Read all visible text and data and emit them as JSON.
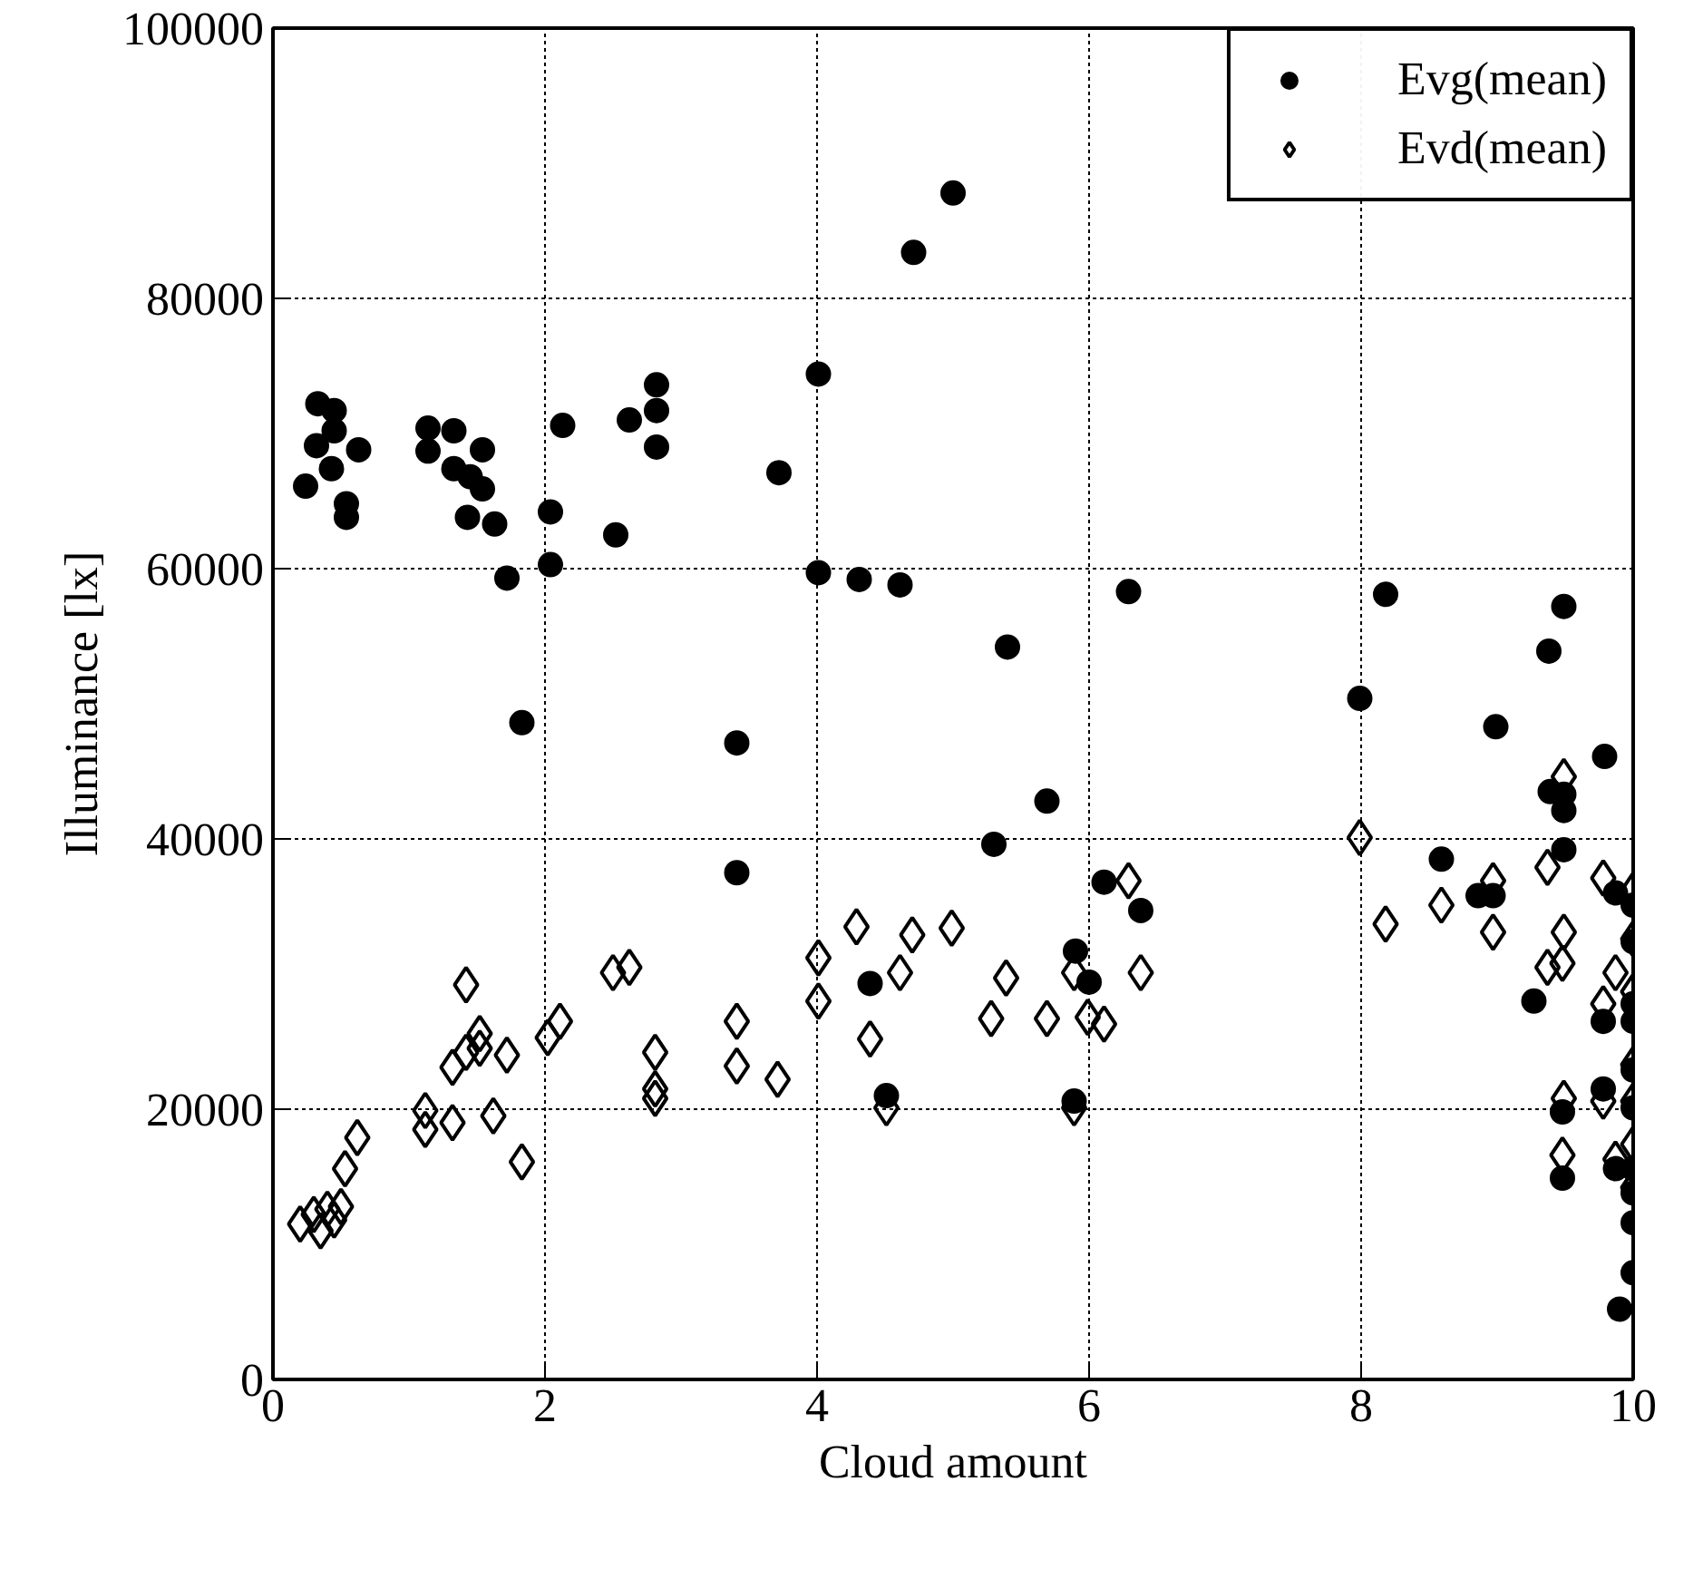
{
  "chart_data": {
    "type": "scatter",
    "xlabel": "Cloud amount",
    "ylabel": "Illuminance [lx]",
    "xlim": [
      0,
      10
    ],
    "ylim": [
      0,
      100000
    ],
    "xticks": [
      0,
      2,
      4,
      6,
      8,
      10
    ],
    "yticks": [
      0,
      20000,
      40000,
      60000,
      80000,
      100000
    ],
    "grid": true,
    "legend": "top right",
    "series": [
      {
        "name": "Evg(mean)",
        "color": "#000000",
        "marker": "circle",
        "x": [
          0.33,
          0.45,
          0.45,
          0.32,
          0.63,
          0.43,
          0.24,
          0.54,
          0.54,
          1.14,
          1.14,
          1.33,
          1.54,
          1.33,
          1.45,
          1.54,
          1.43,
          1.63,
          1.72,
          2.04,
          2.04,
          2.13,
          1.83,
          2.52,
          2.62,
          2.82,
          2.82,
          2.82,
          3.72,
          4.01,
          4.01,
          4.31,
          4.61,
          3.41,
          3.41,
          5.0,
          4.71,
          6.29,
          8.18,
          5.4,
          9.49,
          9.38,
          7.99,
          8.99,
          9.79,
          5.69,
          5.3,
          9.39,
          9.49,
          9.49,
          9.49,
          8.59,
          6.11,
          6.38,
          5.9,
          8.86,
          8.97,
          6.0,
          5.89,
          4.51,
          4.39,
          9.27,
          9.48,
          9.48,
          9.78,
          9.78,
          9.87,
          9.87,
          10,
          10,
          10,
          10,
          10,
          10,
          10,
          10,
          10,
          10,
          9.9
        ],
        "values": [
          72200,
          71700,
          70200,
          69100,
          68800,
          67400,
          66100,
          64800,
          63800,
          70400,
          68700,
          70200,
          68800,
          67400,
          66800,
          65900,
          63800,
          63300,
          59300,
          64200,
          60300,
          70600,
          48600,
          62500,
          71000,
          73600,
          71700,
          69000,
          67100,
          74400,
          59700,
          59200,
          58800,
          47100,
          37500,
          87800,
          83400,
          58300,
          58100,
          54200,
          57200,
          53900,
          50400,
          48300,
          46100,
          42800,
          39600,
          43500,
          43300,
          42100,
          39200,
          38500,
          36800,
          34700,
          31700,
          35800,
          35800,
          29400,
          20600,
          21000,
          29300,
          28000,
          19800,
          14900,
          26500,
          21500,
          15600,
          36000,
          35100,
          32400,
          27800,
          26500,
          22900,
          20100,
          15600,
          13800,
          11600,
          7900,
          5200
        ]
      },
      {
        "name": "Evd(mean)",
        "color": "#000000",
        "marker": "diamond",
        "x": [
          0.2,
          0.3,
          0.35,
          0.4,
          0.45,
          0.5,
          0.53,
          0.62,
          1.12,
          1.12,
          1.32,
          1.62,
          1.83,
          1.32,
          1.42,
          1.42,
          1.52,
          1.52,
          1.72,
          2.02,
          2.11,
          2.5,
          2.62,
          2.81,
          2.81,
          2.81,
          3.41,
          3.41,
          3.71,
          4.01,
          4.01,
          4.29,
          4.39,
          4.51,
          4.7,
          4.61,
          4.99,
          5.39,
          5.28,
          5.69,
          5.89,
          5.99,
          6.11,
          6.29,
          6.38,
          5.89,
          7.99,
          8.18,
          8.59,
          8.97,
          8.97,
          9.37,
          9.49,
          9.49,
          9.37,
          9.48,
          9.49,
          9.48,
          9.78,
          9.78,
          9.78,
          9.87,
          9.87,
          10,
          10,
          10,
          10,
          10,
          10,
          10
        ],
        "values": [
          11500,
          12200,
          11000,
          12600,
          11800,
          12800,
          15600,
          17900,
          19900,
          18500,
          19000,
          19500,
          16100,
          23100,
          29200,
          24200,
          25600,
          24500,
          24000,
          25300,
          26500,
          30100,
          30500,
          24200,
          21500,
          20800,
          26500,
          23200,
          22200,
          31200,
          28000,
          33500,
          25200,
          20100,
          32900,
          30100,
          33400,
          29700,
          26700,
          26700,
          30100,
          26800,
          26300,
          36900,
          30100,
          20100,
          40100,
          33700,
          35100,
          36900,
          33100,
          37900,
          44600,
          33100,
          30500,
          30800,
          20800,
          16600,
          37100,
          27800,
          20600,
          30100,
          16300,
          36200,
          32600,
          28700,
          23300,
          20600,
          17400,
          14200
        ]
      }
    ]
  }
}
